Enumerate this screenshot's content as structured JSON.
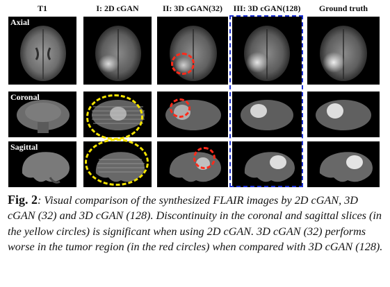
{
  "columns": [
    {
      "label": "T1"
    },
    {
      "label": "I: 2D cGAN"
    },
    {
      "label": "II: 3D cGAN(32)"
    },
    {
      "label": "III: 3D cGAN(128)"
    },
    {
      "label": "Ground truth"
    }
  ],
  "rows": [
    {
      "label": "Axial"
    },
    {
      "label": "Coronal"
    },
    {
      "label": "Sagittal"
    }
  ],
  "colors": {
    "yellow_circle": "#f5e400",
    "red_circle": "#ff2a1a",
    "blue_box": "#1b2fd0"
  },
  "caption": {
    "fig_label": "Fig. 2",
    "text": ": Visual comparison of the synthesized FLAIR images by 2D cGAN, 3D cGAN (32) and 3D cGAN (128).  Discontinuity in the coronal and sagittal slices (in the yellow circles) is significant when using 2D cGAN. 3D cGAN (32) performs worse in the tumor region (in the red circles) when compared with 3D cGAN (128)."
  }
}
